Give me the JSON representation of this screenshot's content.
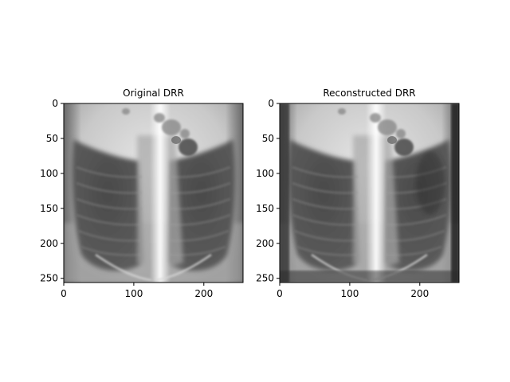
{
  "chart_data": [
    {
      "type": "image",
      "title": "Original DRR",
      "xlabel": "",
      "ylabel": "",
      "xlim": [
        0,
        256
      ],
      "ylim": [
        256,
        0
      ],
      "colormap": "gray",
      "x_ticks": [
        0,
        100,
        200
      ],
      "y_ticks": [
        0,
        50,
        100,
        150,
        200,
        250
      ]
    },
    {
      "type": "image",
      "title": "Reconstructed DRR",
      "xlabel": "",
      "ylabel": "",
      "xlim": [
        0,
        256
      ],
      "ylim": [
        256,
        0
      ],
      "colormap": "gray",
      "x_ticks": [
        0,
        100,
        200
      ],
      "y_ticks": [
        0,
        50,
        100,
        150,
        200,
        250
      ]
    }
  ]
}
